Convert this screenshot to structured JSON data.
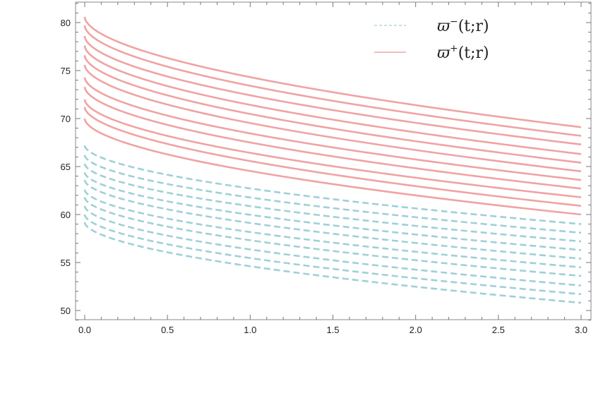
{
  "chart_data": {
    "type": "line",
    "title": "",
    "xlabel": "",
    "ylabel": "",
    "xlim": [
      0,
      3.0
    ],
    "ylim": [
      49,
      82.5
    ],
    "x_ticks": [
      "0.0",
      "0.5",
      "1.0",
      "1.5",
      "2.0",
      "2.5",
      "3.0"
    ],
    "y_ticks": [
      "50",
      "55",
      "60",
      "65",
      "70",
      "75",
      "80"
    ],
    "x_tick_values": [
      0,
      0.5,
      1.0,
      1.5,
      2.0,
      2.5,
      3.0
    ],
    "y_tick_values": [
      50,
      55,
      60,
      65,
      70,
      75,
      80
    ],
    "grid": false,
    "legend_position": "top-right",
    "series": [
      {
        "name": "ϖ⁻(t;r)",
        "legend_base": "ϖ",
        "legend_sup": "−",
        "legend_tail": "(t;r)",
        "style": "dashed",
        "color": "#9fd0d8",
        "curves": [
          {
            "y_start": 59.2,
            "y_end": 50.8
          },
          {
            "y_start": 60.0,
            "y_end": 51.7
          },
          {
            "y_start": 60.9,
            "y_end": 52.6
          },
          {
            "y_start": 61.8,
            "y_end": 53.6
          },
          {
            "y_start": 62.6,
            "y_end": 54.5
          },
          {
            "y_start": 63.6,
            "y_end": 55.4
          },
          {
            "y_start": 64.4,
            "y_end": 56.3
          },
          {
            "y_start": 65.3,
            "y_end": 57.2
          },
          {
            "y_start": 66.2,
            "y_end": 58.1
          },
          {
            "y_start": 67.2,
            "y_end": 59.0
          }
        ]
      },
      {
        "name": "ϖ⁺(t;r)",
        "legend_base": "ϖ",
        "legend_sup": "+",
        "legend_tail": "(t;r)",
        "style": "solid",
        "color": "#f0a3a3",
        "curves": [
          {
            "y_start": 70.0,
            "y_end": 60.0
          },
          {
            "y_start": 71.2,
            "y_end": 60.9
          },
          {
            "y_start": 72.0,
            "y_end": 61.8
          },
          {
            "y_start": 73.3,
            "y_end": 62.7
          },
          {
            "y_start": 74.3,
            "y_end": 63.6
          },
          {
            "y_start": 75.6,
            "y_end": 64.5
          },
          {
            "y_start": 76.6,
            "y_end": 65.4
          },
          {
            "y_start": 77.6,
            "y_end": 66.3
          },
          {
            "y_start": 78.6,
            "y_end": 67.3
          },
          {
            "y_start": 79.7,
            "y_end": 68.2
          },
          {
            "y_start": 80.6,
            "y_end": 69.1
          }
        ]
      }
    ]
  }
}
